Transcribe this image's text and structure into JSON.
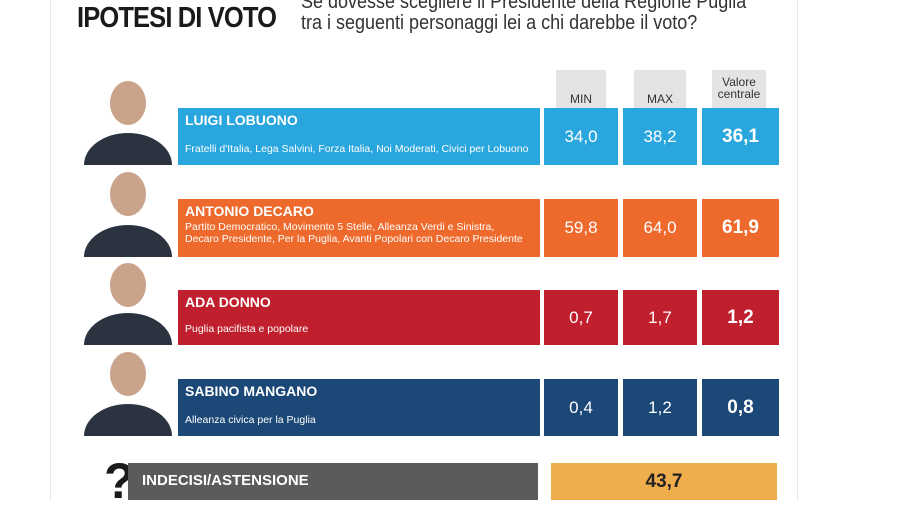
{
  "title": "IPOTESI DI VOTO",
  "question": [
    "Se dovesse scegliere il Presidente della Regione Puglia",
    "tra i seguenti personaggi lei a chi darebbe il voto?"
  ],
  "headers": {
    "min": "MIN",
    "max": "MAX",
    "central": [
      "Valore",
      "centrale"
    ]
  },
  "candidates": [
    {
      "name": "LUIGI LOBUONO",
      "parties": [
        "Fratelli d'Italia, Lega Salvini, Forza Italia, Noi Moderati, Civici per Lobuono"
      ],
      "min": "34,0",
      "max": "38,2",
      "central": "36,1",
      "color": "#29a6dd"
    },
    {
      "name": "ANTONIO DECARO",
      "parties": [
        "Partito Democratico, Movimento 5 Stelle, Alleanza Verdi e Sinistra,",
        "Decaro Presidente, Per la Puglia, Avanti Popolari con Decaro Presidente"
      ],
      "min": "59,8",
      "max": "64,0",
      "central": "61,9",
      "color": "#ee6a2c"
    },
    {
      "name": "ADA DONNO",
      "parties": [
        "Puglia pacifista e popolare"
      ],
      "min": "0,7",
      "max": "1,7",
      "central": "1,2",
      "color": "#c01f2d"
    },
    {
      "name": "SABINO MANGANO",
      "parties": [
        "Alleanza civica per la Puglia"
      ],
      "min": "0,4",
      "max": "1,2",
      "central": "0,8",
      "color": "#1b4877"
    }
  ],
  "undecided": {
    "icon": "question-mark-icon",
    "label": "INDECISI/ASTENSIONE",
    "value": "43,7",
    "bar_color": "#5b5b5b",
    "value_color": "#f0ad4c"
  }
}
